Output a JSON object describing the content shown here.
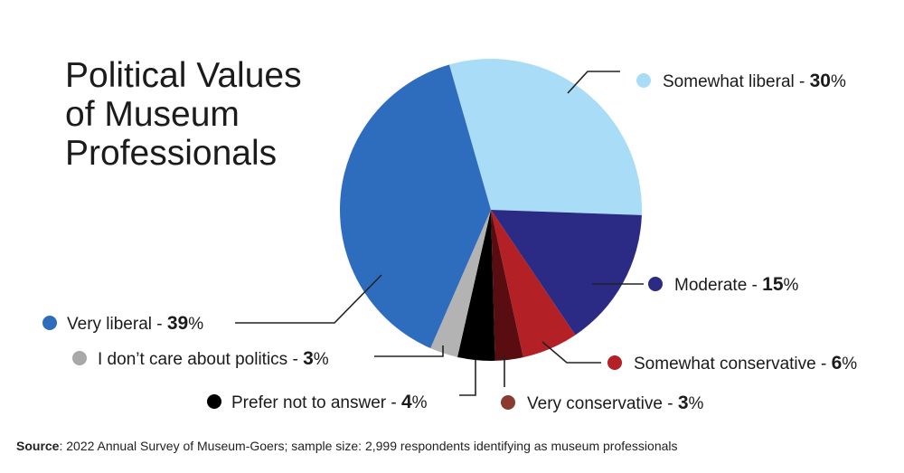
{
  "chart_data": {
    "type": "pie",
    "title_lines": [
      "Political Values",
      "of Museum",
      "Professionals"
    ],
    "slices": [
      {
        "label": "Somewhat liberal",
        "value": 30,
        "color": "#a9dcf7"
      },
      {
        "label": "Moderate",
        "value": 15,
        "color": "#2b2b86"
      },
      {
        "label": "Somewhat conservative",
        "value": 6,
        "color": "#b32025"
      },
      {
        "label": "Very conservative",
        "value": 3,
        "color": "#5a0d10"
      },
      {
        "label": "Prefer not to answer",
        "value": 4,
        "color": "#000000"
      },
      {
        "label": "I don’t care about politics",
        "value": 3,
        "color": "#b3b3b3"
      },
      {
        "label": "Very liberal",
        "value": 39,
        "color": "#2e6dbd"
      }
    ],
    "legend_dot_colors": {
      "Very conservative": "#8b3a2f",
      "I don’t care about politics": "#a8a8a8"
    }
  },
  "source": {
    "label": "Source",
    "text": ": 2022 Annual Survey of Museum-Goers; sample size: 2,999 respondents identifying as museum professionals"
  }
}
